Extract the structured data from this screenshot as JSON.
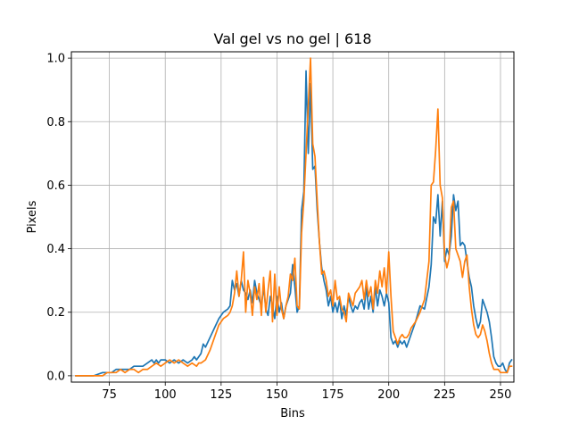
{
  "chart_data": {
    "type": "line",
    "title": "Val gel vs no gel | 618",
    "xlabel": "Bins",
    "ylabel": "Pixels",
    "xlim": [
      58,
      256
    ],
    "ylim": [
      -0.02,
      1.02
    ],
    "xticks": [
      75,
      100,
      125,
      150,
      175,
      200,
      225,
      250
    ],
    "yticks": [
      0.0,
      0.2,
      0.4,
      0.6,
      0.8,
      1.0
    ],
    "xtick_labels": [
      "75",
      "100",
      "125",
      "150",
      "175",
      "200",
      "225",
      "250"
    ],
    "ytick_labels": [
      "0.0",
      "0.2",
      "0.4",
      "0.6",
      "0.8",
      "1.0"
    ],
    "grid": true,
    "legend": false,
    "series": [
      {
        "color": "#1f77b4",
        "points": [
          [
            60,
            0.0
          ],
          [
            64,
            0.0
          ],
          [
            68,
            0.0
          ],
          [
            72,
            0.01
          ],
          [
            74,
            0.01
          ],
          [
            76,
            0.01
          ],
          [
            78,
            0.02
          ],
          [
            80,
            0.02
          ],
          [
            82,
            0.02
          ],
          [
            84,
            0.02
          ],
          [
            86,
            0.03
          ],
          [
            88,
            0.03
          ],
          [
            90,
            0.03
          ],
          [
            92,
            0.04
          ],
          [
            94,
            0.05
          ],
          [
            95,
            0.04
          ],
          [
            96,
            0.05
          ],
          [
            97,
            0.04
          ],
          [
            98,
            0.05
          ],
          [
            100,
            0.05
          ],
          [
            102,
            0.04
          ],
          [
            104,
            0.05
          ],
          [
            106,
            0.04
          ],
          [
            108,
            0.05
          ],
          [
            110,
            0.04
          ],
          [
            112,
            0.05
          ],
          [
            113,
            0.06
          ],
          [
            114,
            0.05
          ],
          [
            116,
            0.07
          ],
          [
            117,
            0.1
          ],
          [
            118,
            0.09
          ],
          [
            120,
            0.12
          ],
          [
            122,
            0.15
          ],
          [
            124,
            0.18
          ],
          [
            126,
            0.2
          ],
          [
            128,
            0.21
          ],
          [
            129,
            0.22
          ],
          [
            130,
            0.3
          ],
          [
            131,
            0.27
          ],
          [
            132,
            0.29
          ],
          [
            133,
            0.25
          ],
          [
            134,
            0.3
          ],
          [
            135,
            0.27
          ],
          [
            136,
            0.26
          ],
          [
            137,
            0.24
          ],
          [
            138,
            0.27
          ],
          [
            139,
            0.23
          ],
          [
            140,
            0.3
          ],
          [
            141,
            0.26
          ],
          [
            142,
            0.24
          ],
          [
            143,
            0.22
          ],
          [
            144,
            0.28
          ],
          [
            145,
            0.21
          ],
          [
            146,
            0.19
          ],
          [
            147,
            0.25
          ],
          [
            148,
            0.22
          ],
          [
            149,
            0.18
          ],
          [
            150,
            0.25
          ],
          [
            151,
            0.2
          ],
          [
            152,
            0.23
          ],
          [
            153,
            0.18
          ],
          [
            154,
            0.22
          ],
          [
            155,
            0.24
          ],
          [
            156,
            0.26
          ],
          [
            157,
            0.35
          ],
          [
            158,
            0.28
          ],
          [
            159,
            0.2
          ],
          [
            160,
            0.22
          ],
          [
            161,
            0.52
          ],
          [
            162,
            0.58
          ],
          [
            163,
            0.96
          ],
          [
            164,
            0.7
          ],
          [
            165,
            0.92
          ],
          [
            166,
            0.65
          ],
          [
            167,
            0.66
          ],
          [
            168,
            0.52
          ],
          [
            169,
            0.42
          ],
          [
            170,
            0.34
          ],
          [
            171,
            0.3
          ],
          [
            172,
            0.27
          ],
          [
            173,
            0.22
          ],
          [
            174,
            0.25
          ],
          [
            175,
            0.2
          ],
          [
            176,
            0.23
          ],
          [
            177,
            0.2
          ],
          [
            178,
            0.24
          ],
          [
            179,
            0.18
          ],
          [
            180,
            0.22
          ],
          [
            181,
            0.19
          ],
          [
            182,
            0.25
          ],
          [
            183,
            0.22
          ],
          [
            184,
            0.2
          ],
          [
            185,
            0.22
          ],
          [
            186,
            0.21
          ],
          [
            187,
            0.23
          ],
          [
            188,
            0.24
          ],
          [
            189,
            0.21
          ],
          [
            190,
            0.28
          ],
          [
            191,
            0.21
          ],
          [
            192,
            0.25
          ],
          [
            193,
            0.2
          ],
          [
            194,
            0.28
          ],
          [
            195,
            0.22
          ],
          [
            196,
            0.27
          ],
          [
            197,
            0.25
          ],
          [
            198,
            0.22
          ],
          [
            199,
            0.26
          ],
          [
            200,
            0.23
          ],
          [
            201,
            0.12
          ],
          [
            202,
            0.1
          ],
          [
            203,
            0.11
          ],
          [
            204,
            0.09
          ],
          [
            205,
            0.11
          ],
          [
            206,
            0.1
          ],
          [
            207,
            0.11
          ],
          [
            208,
            0.09
          ],
          [
            210,
            0.13
          ],
          [
            212,
            0.17
          ],
          [
            214,
            0.22
          ],
          [
            216,
            0.21
          ],
          [
            218,
            0.28
          ],
          [
            219,
            0.35
          ],
          [
            220,
            0.5
          ],
          [
            221,
            0.48
          ],
          [
            222,
            0.57
          ],
          [
            223,
            0.44
          ],
          [
            224,
            0.55
          ],
          [
            225,
            0.36
          ],
          [
            226,
            0.4
          ],
          [
            227,
            0.38
          ],
          [
            228,
            0.44
          ],
          [
            229,
            0.57
          ],
          [
            230,
            0.52
          ],
          [
            231,
            0.55
          ],
          [
            232,
            0.41
          ],
          [
            233,
            0.42
          ],
          [
            234,
            0.41
          ],
          [
            235,
            0.36
          ],
          [
            236,
            0.31
          ],
          [
            237,
            0.28
          ],
          [
            238,
            0.22
          ],
          [
            239,
            0.18
          ],
          [
            240,
            0.15
          ],
          [
            241,
            0.17
          ],
          [
            242,
            0.24
          ],
          [
            243,
            0.22
          ],
          [
            244,
            0.2
          ],
          [
            245,
            0.17
          ],
          [
            246,
            0.12
          ],
          [
            247,
            0.06
          ],
          [
            248,
            0.04
          ],
          [
            249,
            0.03
          ],
          [
            250,
            0.03
          ],
          [
            251,
            0.04
          ],
          [
            252,
            0.02
          ],
          [
            253,
            0.01
          ],
          [
            254,
            0.04
          ],
          [
            255,
            0.05
          ]
        ]
      },
      {
        "color": "#ff7f0e",
        "points": [
          [
            60,
            0.0
          ],
          [
            64,
            0.0
          ],
          [
            68,
            0.0
          ],
          [
            72,
            0.0
          ],
          [
            74,
            0.01
          ],
          [
            76,
            0.01
          ],
          [
            78,
            0.01
          ],
          [
            80,
            0.02
          ],
          [
            82,
            0.01
          ],
          [
            84,
            0.02
          ],
          [
            86,
            0.02
          ],
          [
            88,
            0.01
          ],
          [
            90,
            0.02
          ],
          [
            92,
            0.02
          ],
          [
            94,
            0.03
          ],
          [
            96,
            0.04
          ],
          [
            98,
            0.03
          ],
          [
            100,
            0.04
          ],
          [
            102,
            0.05
          ],
          [
            104,
            0.04
          ],
          [
            106,
            0.05
          ],
          [
            108,
            0.04
          ],
          [
            110,
            0.03
          ],
          [
            112,
            0.04
          ],
          [
            114,
            0.03
          ],
          [
            115,
            0.04
          ],
          [
            116,
            0.04
          ],
          [
            118,
            0.05
          ],
          [
            120,
            0.08
          ],
          [
            122,
            0.12
          ],
          [
            124,
            0.16
          ],
          [
            126,
            0.18
          ],
          [
            128,
            0.19
          ],
          [
            129,
            0.2
          ],
          [
            130,
            0.22
          ],
          [
            131,
            0.26
          ],
          [
            132,
            0.33
          ],
          [
            133,
            0.25
          ],
          [
            134,
            0.3
          ],
          [
            135,
            0.39
          ],
          [
            136,
            0.2
          ],
          [
            137,
            0.3
          ],
          [
            138,
            0.26
          ],
          [
            139,
            0.19
          ],
          [
            140,
            0.28
          ],
          [
            141,
            0.24
          ],
          [
            142,
            0.29
          ],
          [
            143,
            0.19
          ],
          [
            144,
            0.31
          ],
          [
            145,
            0.2
          ],
          [
            146,
            0.27
          ],
          [
            147,
            0.33
          ],
          [
            148,
            0.17
          ],
          [
            149,
            0.32
          ],
          [
            150,
            0.19
          ],
          [
            151,
            0.28
          ],
          [
            152,
            0.21
          ],
          [
            153,
            0.18
          ],
          [
            154,
            0.22
          ],
          [
            155,
            0.25
          ],
          [
            156,
            0.32
          ],
          [
            157,
            0.3
          ],
          [
            158,
            0.37
          ],
          [
            159,
            0.22
          ],
          [
            160,
            0.21
          ],
          [
            161,
            0.45
          ],
          [
            162,
            0.55
          ],
          [
            163,
            0.7
          ],
          [
            164,
            0.85
          ],
          [
            165,
            1.0
          ],
          [
            166,
            0.73
          ],
          [
            167,
            0.69
          ],
          [
            168,
            0.55
          ],
          [
            169,
            0.42
          ],
          [
            170,
            0.32
          ],
          [
            171,
            0.33
          ],
          [
            172,
            0.3
          ],
          [
            173,
            0.25
          ],
          [
            174,
            0.27
          ],
          [
            175,
            0.22
          ],
          [
            176,
            0.3
          ],
          [
            177,
            0.24
          ],
          [
            178,
            0.25
          ],
          [
            179,
            0.21
          ],
          [
            180,
            0.2
          ],
          [
            181,
            0.17
          ],
          [
            182,
            0.26
          ],
          [
            183,
            0.24
          ],
          [
            184,
            0.22
          ],
          [
            185,
            0.26
          ],
          [
            186,
            0.27
          ],
          [
            187,
            0.28
          ],
          [
            188,
            0.3
          ],
          [
            189,
            0.24
          ],
          [
            190,
            0.3
          ],
          [
            191,
            0.25
          ],
          [
            192,
            0.28
          ],
          [
            193,
            0.21
          ],
          [
            194,
            0.3
          ],
          [
            195,
            0.26
          ],
          [
            196,
            0.33
          ],
          [
            197,
            0.28
          ],
          [
            198,
            0.34
          ],
          [
            199,
            0.26
          ],
          [
            200,
            0.39
          ],
          [
            201,
            0.25
          ],
          [
            202,
            0.14
          ],
          [
            203,
            0.12
          ],
          [
            204,
            0.1
          ],
          [
            205,
            0.12
          ],
          [
            206,
            0.13
          ],
          [
            207,
            0.12
          ],
          [
            208,
            0.12
          ],
          [
            209,
            0.13
          ],
          [
            210,
            0.15
          ],
          [
            212,
            0.17
          ],
          [
            214,
            0.2
          ],
          [
            216,
            0.24
          ],
          [
            217,
            0.3
          ],
          [
            218,
            0.36
          ],
          [
            219,
            0.6
          ],
          [
            220,
            0.61
          ],
          [
            221,
            0.71
          ],
          [
            222,
            0.84
          ],
          [
            223,
            0.6
          ],
          [
            224,
            0.56
          ],
          [
            225,
            0.38
          ],
          [
            226,
            0.34
          ],
          [
            227,
            0.37
          ],
          [
            228,
            0.53
          ],
          [
            229,
            0.55
          ],
          [
            230,
            0.4
          ],
          [
            231,
            0.38
          ],
          [
            232,
            0.36
          ],
          [
            233,
            0.31
          ],
          [
            234,
            0.36
          ],
          [
            235,
            0.38
          ],
          [
            236,
            0.28
          ],
          [
            237,
            0.21
          ],
          [
            238,
            0.16
          ],
          [
            239,
            0.13
          ],
          [
            240,
            0.12
          ],
          [
            241,
            0.13
          ],
          [
            242,
            0.16
          ],
          [
            243,
            0.14
          ],
          [
            244,
            0.11
          ],
          [
            245,
            0.07
          ],
          [
            246,
            0.04
          ],
          [
            247,
            0.02
          ],
          [
            248,
            0.02
          ],
          [
            249,
            0.02
          ],
          [
            250,
            0.01
          ],
          [
            251,
            0.01
          ],
          [
            252,
            0.01
          ],
          [
            253,
            0.01
          ],
          [
            254,
            0.03
          ],
          [
            255,
            0.03
          ]
        ]
      }
    ]
  }
}
